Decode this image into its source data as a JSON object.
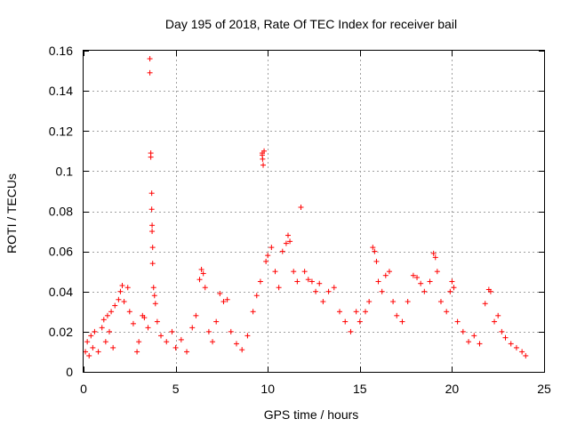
{
  "chart_data": {
    "type": "scatter",
    "title": "Day 195 of 2018, Rate Of TEC Index for receiver bail",
    "xlabel": "GPS time / hours",
    "ylabel": "ROTI / TECUs",
    "xlim": [
      0,
      25
    ],
    "ylim": [
      0,
      0.16
    ],
    "xticks": [
      0,
      5,
      10,
      15,
      20,
      25
    ],
    "yticks": [
      0,
      0.02,
      0.04,
      0.06,
      0.08,
      0.1,
      0.12,
      0.14,
      0.16
    ],
    "xtick_labels": [
      "0",
      "5",
      "10",
      "15",
      "20",
      "25"
    ],
    "ytick_labels": [
      "0",
      "0.02",
      "0.04",
      "0.06",
      "0.08",
      "0.1",
      "0.12",
      "0.14",
      "0.16"
    ],
    "grid": true,
    "marker": "+",
    "color": "#ff0000",
    "series": [
      {
        "name": "ROTI",
        "points": [
          [
            0.1,
            0.01
          ],
          [
            0.2,
            0.015
          ],
          [
            0.3,
            0.008
          ],
          [
            0.4,
            0.018
          ],
          [
            0.5,
            0.012
          ],
          [
            0.6,
            0.02
          ],
          [
            0.8,
            0.01
          ],
          [
            1.0,
            0.022
          ],
          [
            1.1,
            0.026
          ],
          [
            1.2,
            0.015
          ],
          [
            1.3,
            0.028
          ],
          [
            1.4,
            0.02
          ],
          [
            1.5,
            0.03
          ],
          [
            1.6,
            0.012
          ],
          [
            1.7,
            0.033
          ],
          [
            1.9,
            0.036
          ],
          [
            2.0,
            0.04
          ],
          [
            2.1,
            0.043
          ],
          [
            2.2,
            0.035
          ],
          [
            2.4,
            0.042
          ],
          [
            2.5,
            0.03
          ],
          [
            2.7,
            0.024
          ],
          [
            2.9,
            0.01
          ],
          [
            3.0,
            0.015
          ],
          [
            3.2,
            0.028
          ],
          [
            3.3,
            0.027
          ],
          [
            3.5,
            0.022
          ],
          [
            3.6,
            0.156
          ],
          [
            3.6,
            0.149
          ],
          [
            3.65,
            0.109
          ],
          [
            3.65,
            0.107
          ],
          [
            3.7,
            0.089
          ],
          [
            3.7,
            0.081
          ],
          [
            3.72,
            0.073
          ],
          [
            3.72,
            0.07
          ],
          [
            3.75,
            0.062
          ],
          [
            3.75,
            0.054
          ],
          [
            3.8,
            0.042
          ],
          [
            3.85,
            0.038
          ],
          [
            3.9,
            0.034
          ],
          [
            4.0,
            0.025
          ],
          [
            4.2,
            0.018
          ],
          [
            4.5,
            0.015
          ],
          [
            4.8,
            0.02
          ],
          [
            5.0,
            0.012
          ],
          [
            5.3,
            0.016
          ],
          [
            5.6,
            0.01
          ],
          [
            5.9,
            0.022
          ],
          [
            6.1,
            0.028
          ],
          [
            6.3,
            0.046
          ],
          [
            6.4,
            0.051
          ],
          [
            6.5,
            0.049
          ],
          [
            6.6,
            0.042
          ],
          [
            6.8,
            0.02
          ],
          [
            7.0,
            0.015
          ],
          [
            7.2,
            0.025
          ],
          [
            7.4,
            0.039
          ],
          [
            7.6,
            0.035
          ],
          [
            7.8,
            0.036
          ],
          [
            8.0,
            0.02
          ],
          [
            8.3,
            0.014
          ],
          [
            8.6,
            0.011
          ],
          [
            8.9,
            0.018
          ],
          [
            9.2,
            0.03
          ],
          [
            9.4,
            0.038
          ],
          [
            9.6,
            0.045
          ],
          [
            9.7,
            0.109
          ],
          [
            9.7,
            0.108
          ],
          [
            9.72,
            0.106
          ],
          [
            9.75,
            0.103
          ],
          [
            9.8,
            0.11
          ],
          [
            9.9,
            0.055
          ],
          [
            10.0,
            0.058
          ],
          [
            10.2,
            0.062
          ],
          [
            10.4,
            0.05
          ],
          [
            10.6,
            0.042
          ],
          [
            10.8,
            0.06
          ],
          [
            11.0,
            0.064
          ],
          [
            11.1,
            0.068
          ],
          [
            11.2,
            0.065
          ],
          [
            11.4,
            0.05
          ],
          [
            11.6,
            0.045
          ],
          [
            11.8,
            0.082
          ],
          [
            12.0,
            0.05
          ],
          [
            12.2,
            0.046
          ],
          [
            12.4,
            0.045
          ],
          [
            12.6,
            0.04
          ],
          [
            12.8,
            0.044
          ],
          [
            13.0,
            0.035
          ],
          [
            13.3,
            0.04
          ],
          [
            13.6,
            0.042
          ],
          [
            13.9,
            0.03
          ],
          [
            14.2,
            0.025
          ],
          [
            14.5,
            0.02
          ],
          [
            14.8,
            0.03
          ],
          [
            15.0,
            0.025
          ],
          [
            15.3,
            0.03
          ],
          [
            15.5,
            0.035
          ],
          [
            15.7,
            0.062
          ],
          [
            15.8,
            0.06
          ],
          [
            15.9,
            0.055
          ],
          [
            16.0,
            0.045
          ],
          [
            16.2,
            0.04
          ],
          [
            16.4,
            0.048
          ],
          [
            16.6,
            0.05
          ],
          [
            16.8,
            0.035
          ],
          [
            17.0,
            0.028
          ],
          [
            17.3,
            0.025
          ],
          [
            17.6,
            0.035
          ],
          [
            17.9,
            0.048
          ],
          [
            18.1,
            0.047
          ],
          [
            18.3,
            0.044
          ],
          [
            18.5,
            0.04
          ],
          [
            18.8,
            0.045
          ],
          [
            19.0,
            0.059
          ],
          [
            19.1,
            0.057
          ],
          [
            19.2,
            0.05
          ],
          [
            19.4,
            0.035
          ],
          [
            19.7,
            0.03
          ],
          [
            19.9,
            0.04
          ],
          [
            20.0,
            0.045
          ],
          [
            20.1,
            0.042
          ],
          [
            20.3,
            0.025
          ],
          [
            20.6,
            0.02
          ],
          [
            20.9,
            0.015
          ],
          [
            21.2,
            0.018
          ],
          [
            21.5,
            0.014
          ],
          [
            21.8,
            0.034
          ],
          [
            22.0,
            0.041
          ],
          [
            22.1,
            0.04
          ],
          [
            22.3,
            0.025
          ],
          [
            22.5,
            0.028
          ],
          [
            22.7,
            0.02
          ],
          [
            22.9,
            0.017
          ],
          [
            23.2,
            0.014
          ],
          [
            23.5,
            0.012
          ],
          [
            23.8,
            0.01
          ],
          [
            24.0,
            0.008
          ]
        ]
      }
    ]
  }
}
